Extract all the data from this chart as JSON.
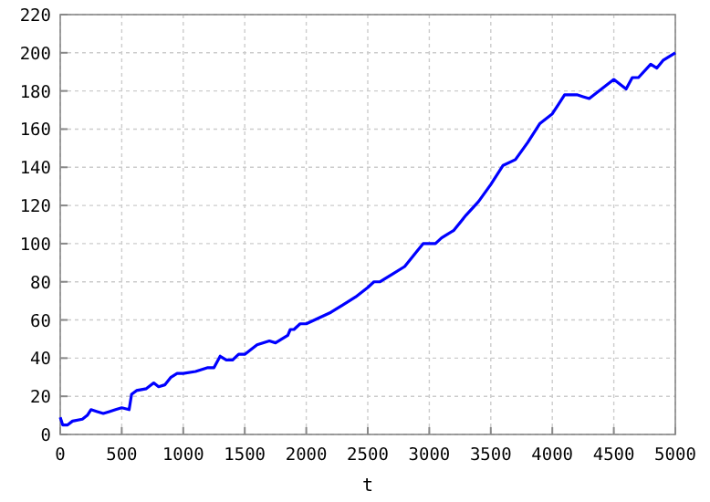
{
  "chart_data": {
    "type": "line",
    "xlabel": "t",
    "xlim": [
      0,
      5000
    ],
    "ylim": [
      0,
      220
    ],
    "xticks": [
      0,
      500,
      1000,
      1500,
      2000,
      2500,
      3000,
      3500,
      4000,
      4500,
      5000
    ],
    "yticks": [
      0,
      20,
      40,
      60,
      80,
      100,
      120,
      140,
      160,
      180,
      200,
      220
    ],
    "grid": true,
    "marker": "none",
    "line_style": "solid",
    "x": [
      0,
      20,
      60,
      100,
      180,
      220,
      250,
      300,
      350,
      400,
      450,
      500,
      560,
      580,
      620,
      700,
      760,
      800,
      850,
      900,
      950,
      1000,
      1100,
      1200,
      1250,
      1300,
      1350,
      1400,
      1450,
      1500,
      1600,
      1700,
      1750,
      1850,
      1870,
      1900,
      1950,
      2000,
      2100,
      2200,
      2300,
      2400,
      2500,
      2550,
      2600,
      2700,
      2800,
      2900,
      2950,
      3050,
      3100,
      3200,
      3300,
      3400,
      3500,
      3600,
      3700,
      3800,
      3900,
      4000,
      4050,
      4100,
      4200,
      4250,
      4300,
      4400,
      4500,
      4600,
      4650,
      4700,
      4800,
      4850,
      4900,
      5000
    ],
    "series": [
      {
        "color": "#0000ff",
        "values": [
          9,
          5,
          5,
          7,
          8,
          10,
          13,
          12,
          11,
          12,
          13,
          14,
          13,
          21,
          23,
          24,
          27,
          25,
          26,
          30,
          32,
          32,
          33,
          35,
          35,
          41,
          39,
          39,
          42,
          42,
          47,
          49,
          48,
          52,
          55,
          55,
          58,
          58,
          61,
          64,
          68,
          72,
          77,
          80,
          80,
          84,
          88,
          96,
          100,
          100,
          103,
          107,
          115,
          122,
          131,
          141,
          144,
          153,
          163,
          168,
          173,
          178,
          178,
          177,
          176,
          181,
          186,
          181,
          187,
          187,
          194,
          192,
          196,
          200
        ]
      }
    ]
  }
}
